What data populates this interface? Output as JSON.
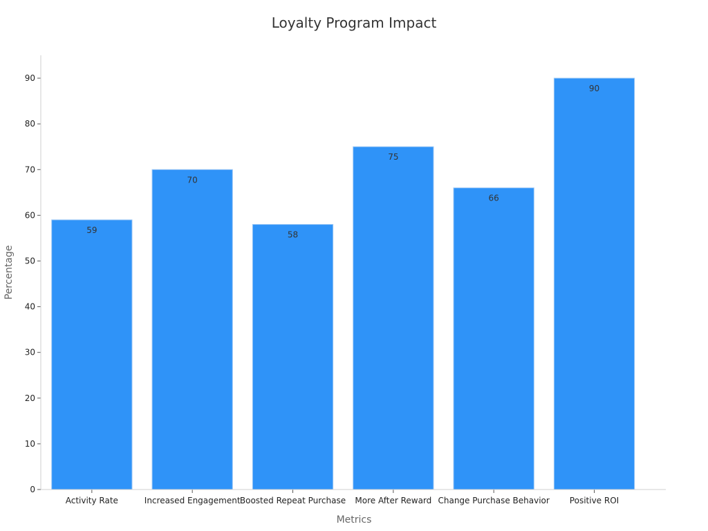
{
  "chart_data": {
    "type": "bar",
    "title": "Loyalty Program Impact",
    "xlabel": "Metrics",
    "ylabel": "Percentage",
    "categories": [
      "Activity Rate",
      "Increased Engagement",
      "Boosted Repeat Purchase",
      "More After Reward",
      "Change Purchase Behavior",
      "Positive ROI"
    ],
    "values": [
      59,
      70,
      58,
      75,
      66,
      90
    ],
    "ylim": [
      0,
      95
    ],
    "yticks": [
      0,
      10,
      20,
      30,
      40,
      50,
      60,
      70,
      80,
      90
    ],
    "grid": false,
    "bar_color": "#2f93f8",
    "data_labels": true
  }
}
